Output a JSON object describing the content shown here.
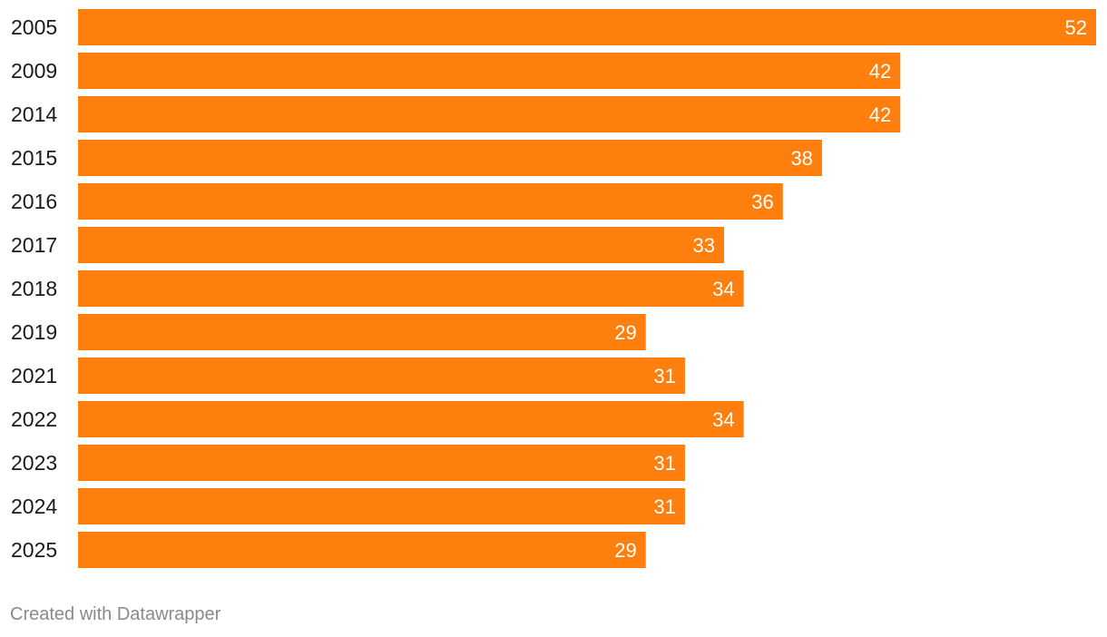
{
  "chart_data": {
    "type": "bar",
    "orientation": "horizontal",
    "categories": [
      "2005",
      "2009",
      "2014",
      "2015",
      "2016",
      "2017",
      "2018",
      "2019",
      "2021",
      "2022",
      "2023",
      "2024",
      "2025"
    ],
    "values": [
      52,
      42,
      42,
      38,
      36,
      33,
      34,
      29,
      31,
      34,
      31,
      31,
      29
    ],
    "xlim": [
      0,
      52
    ],
    "grid": false,
    "legend": "none",
    "bar_color": "#ff7f0e",
    "value_label_color": "#ffffff"
  },
  "footer": {
    "credit": "Created with Datawrapper"
  }
}
